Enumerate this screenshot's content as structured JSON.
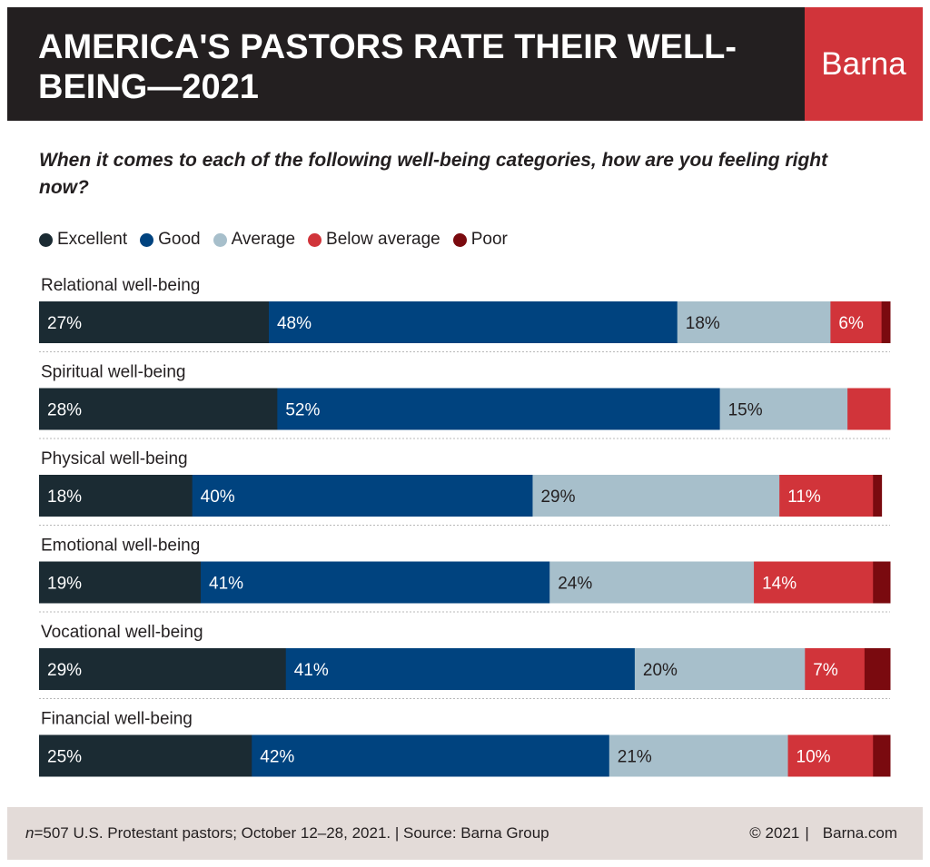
{
  "header": {
    "title": "AMERICA'S PASTORS RATE THEIR WELL-BEING—2021",
    "brand": "Barna"
  },
  "footer": {
    "n_symbol": "n",
    "source": "=507 U.S. Protestant pastors; October 12–28, 2021. | Source: Barna Group",
    "copyright": "© 2021",
    "site": "Barna.com"
  },
  "colors": {
    "header_bg": "#231f20",
    "brand_bg": "#d1343a",
    "footer_bg": "#e3dbd8",
    "label_light": "#ffffff",
    "label_dark": "#231f20"
  },
  "chart_data": {
    "type": "bar",
    "orientation": "horizontal",
    "stacked": true,
    "title": "When it comes to each of the following well-being categories, how are you feeling right now?",
    "legend_position": "top-left",
    "xlim": [
      0,
      100
    ],
    "categories": [
      "Relational well-being",
      "Spiritual well-being",
      "Physical well-being",
      "Emotional well-being",
      "Vocational well-being",
      "Financial well-being"
    ],
    "series": [
      {
        "name": "Excellent",
        "color": "#1b2b33",
        "values": [
          27,
          28,
          18,
          19,
          29,
          25
        ],
        "labels": [
          "27%",
          "28%",
          "18%",
          "19%",
          "29%",
          "25%"
        ],
        "label_color": "light"
      },
      {
        "name": "Good",
        "color": "#00437f",
        "values": [
          48,
          52,
          40,
          41,
          41,
          42
        ],
        "labels": [
          "48%",
          "52%",
          "40%",
          "41%",
          "41%",
          "42%"
        ],
        "label_color": "light"
      },
      {
        "name": "Average",
        "color": "#a7bfcb",
        "values": [
          18,
          15,
          29,
          24,
          20,
          21
        ],
        "labels": [
          "18%",
          "15%",
          "29%",
          "24%",
          "20%",
          "21%"
        ],
        "label_color": "dark"
      },
      {
        "name": "Below average",
        "color": "#d1343a",
        "values": [
          6,
          5,
          11,
          14,
          7,
          10
        ],
        "labels": [
          "6%",
          "",
          "11%",
          "14%",
          "7%",
          "10%"
        ],
        "label_color": "light"
      },
      {
        "name": "Poor",
        "color": "#7a0a0f",
        "values": [
          1,
          0,
          1,
          2,
          3,
          2
        ],
        "labels": [
          "",
          "",
          "",
          "",
          "",
          ""
        ],
        "label_color": "light"
      }
    ]
  }
}
